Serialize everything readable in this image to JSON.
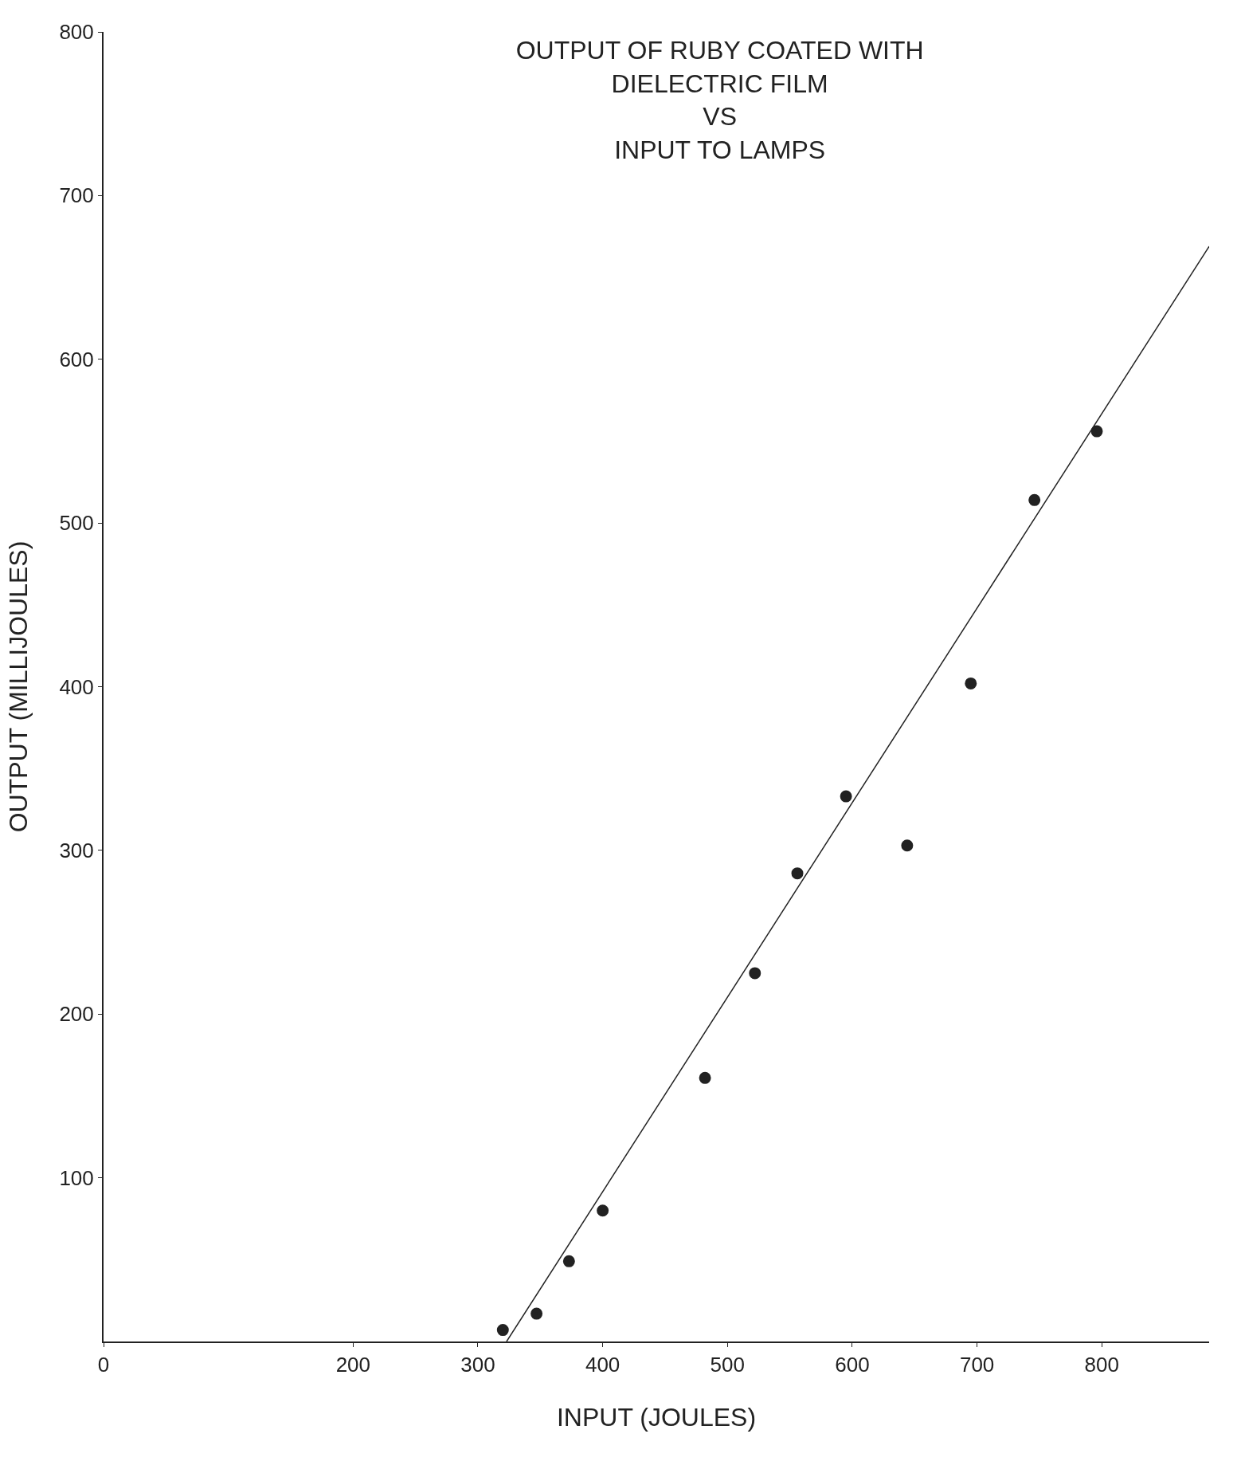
{
  "chart_data": {
    "type": "scatter",
    "title": "OUTPUT OF RUBY COATED WITH\nDIELECTRIC FILM\nVS\nINPUT TO LAMPS",
    "xlabel": "INPUT (JOULES)",
    "ylabel": "OUTPUT (MILLIJOULES)",
    "series": [
      {
        "type": "scatter",
        "color": "#222222",
        "marker": "circle",
        "x": [
          320,
          347,
          373,
          400,
          482,
          522,
          556,
          595,
          644,
          695,
          746,
          796
        ],
        "values": [
          7,
          17,
          49,
          80,
          161,
          225,
          286,
          333,
          303,
          402,
          514,
          556
        ]
      },
      {
        "type": "line",
        "color": "#222222",
        "marker": "none",
        "line_style": "solid",
        "x": [
          323,
          886
        ],
        "values": [
          0,
          669
        ]
      }
    ],
    "xlim": [
      0,
      886
    ],
    "ylim": [
      0,
      800
    ],
    "xticks": [
      0,
      200,
      300,
      400,
      500,
      600,
      700,
      800
    ],
    "yticks": [
      100,
      200,
      300,
      400,
      500,
      600,
      700,
      800
    ]
  }
}
